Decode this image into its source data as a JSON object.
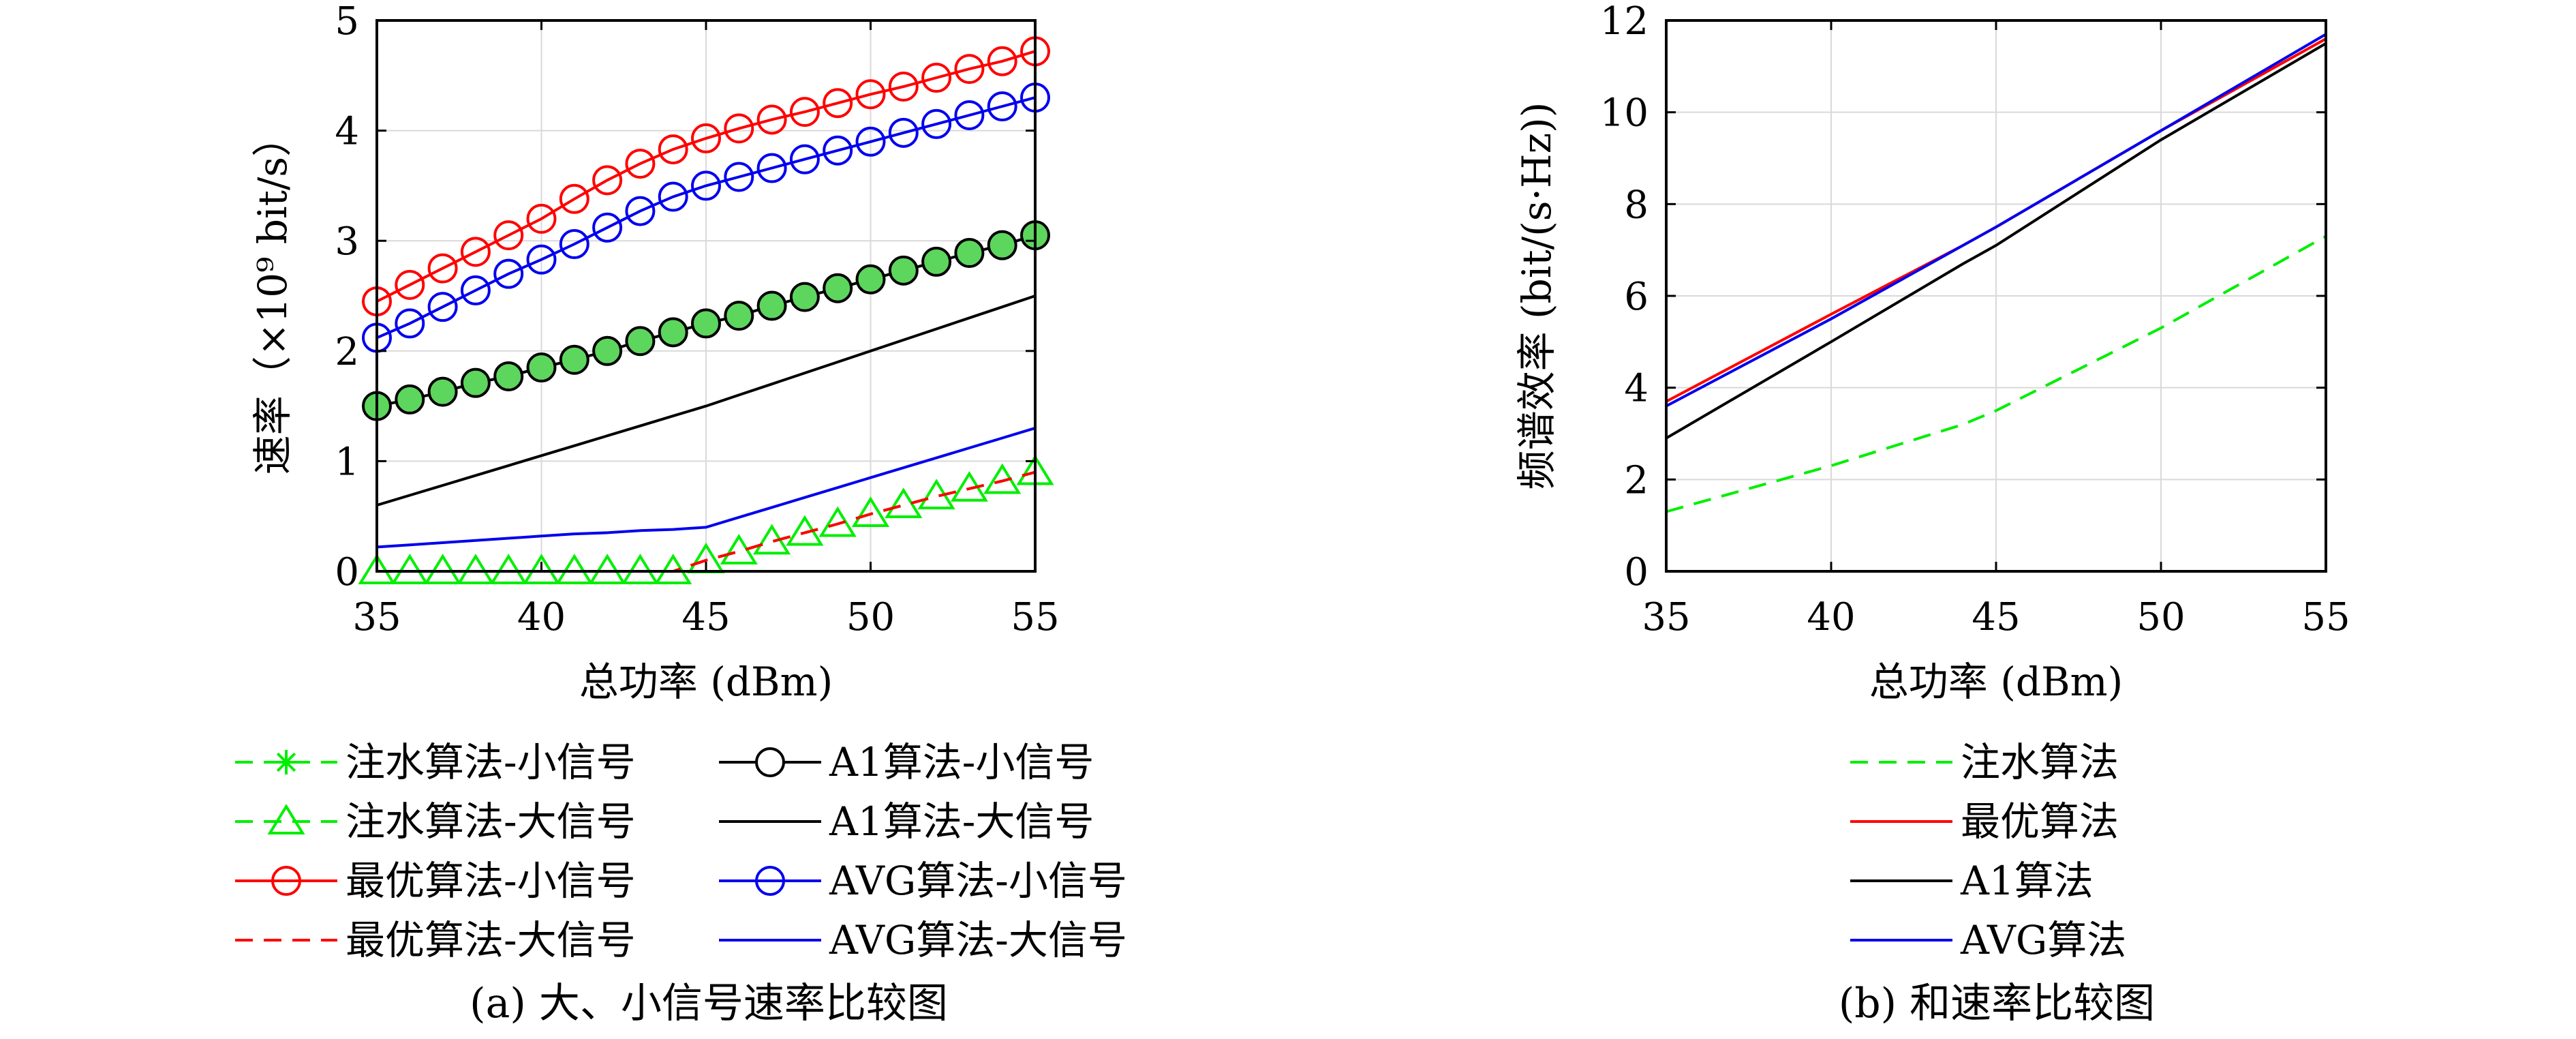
{
  "chart_data": [
    {
      "type": "line",
      "caption": "(a) 大、小信号速率比较图",
      "xlabel": "总功率 (dBm)",
      "ylabel": "速率（×10⁹ bit/s）",
      "xlim": [
        35,
        55
      ],
      "ylim": [
        0,
        5
      ],
      "xticks": [
        "35",
        "40",
        "45",
        "50",
        "55"
      ],
      "yticks": [
        "0",
        "1",
        "2",
        "3",
        "4",
        "5"
      ],
      "grid": true,
      "legend_position": "below",
      "legend_columns": 2,
      "x": [
        35,
        36,
        37,
        38,
        39,
        40,
        41,
        42,
        43,
        44,
        45,
        46,
        47,
        48,
        49,
        50,
        51,
        52,
        53,
        54,
        55
      ],
      "series": [
        {
          "name": "注水算法-小信号",
          "color": "#00ee00",
          "dash": "dashed",
          "marker": "asterisk",
          "values": [
            1.5,
            1.56,
            1.63,
            1.71,
            1.77,
            1.85,
            1.92,
            2.0,
            2.09,
            2.17,
            2.25,
            2.32,
            2.41,
            2.49,
            2.57,
            2.65,
            2.73,
            2.81,
            2.89,
            2.96,
            3.05
          ]
        },
        {
          "name": "注水算法-大信号",
          "color": "#00ee00",
          "dash": "dashed",
          "marker": "triangle",
          "values": [
            0,
            0,
            0,
            0,
            0,
            0,
            0,
            0,
            0,
            0,
            0.1,
            0.18,
            0.27,
            0.35,
            0.43,
            0.52,
            0.6,
            0.68,
            0.75,
            0.82,
            0.9
          ]
        },
        {
          "name": "最优算法-小信号",
          "color": "#ff0000",
          "dash": "solid",
          "marker": "circle",
          "values": [
            2.45,
            2.6,
            2.75,
            2.9,
            3.05,
            3.2,
            3.38,
            3.55,
            3.7,
            3.83,
            3.93,
            4.02,
            4.1,
            4.17,
            4.25,
            4.33,
            4.4,
            4.48,
            4.56,
            4.63,
            4.72
          ]
        },
        {
          "name": "最优算法-大信号",
          "color": "#ff0000",
          "dash": "dashed",
          "marker": "none",
          "values": [
            0,
            0,
            0,
            0,
            0,
            0,
            0,
            0,
            0,
            0,
            0.1,
            0.18,
            0.27,
            0.35,
            0.43,
            0.52,
            0.6,
            0.68,
            0.75,
            0.82,
            0.9
          ]
        },
        {
          "name": "A1算法-小信号",
          "color": "#000000",
          "dash": "solid",
          "marker": "circle",
          "values": [
            1.5,
            1.56,
            1.63,
            1.71,
            1.77,
            1.85,
            1.92,
            2.0,
            2.09,
            2.17,
            2.25,
            2.32,
            2.41,
            2.49,
            2.57,
            2.65,
            2.73,
            2.81,
            2.89,
            2.96,
            3.05
          ]
        },
        {
          "name": "A1算法-大信号",
          "color": "#000000",
          "dash": "solid",
          "marker": "none",
          "values": [
            0.6,
            0.69,
            0.78,
            0.87,
            0.96,
            1.05,
            1.14,
            1.23,
            1.32,
            1.41,
            1.5,
            1.6,
            1.7,
            1.8,
            1.9,
            2.0,
            2.1,
            2.2,
            2.3,
            2.4,
            2.5
          ]
        },
        {
          "name": "AVG算法-小信号",
          "color": "#0000ee",
          "dash": "solid",
          "marker": "circle",
          "values": [
            2.12,
            2.25,
            2.4,
            2.55,
            2.7,
            2.83,
            2.97,
            3.12,
            3.27,
            3.4,
            3.5,
            3.58,
            3.66,
            3.74,
            3.82,
            3.9,
            3.98,
            4.06,
            4.14,
            4.22,
            4.3
          ]
        },
        {
          "name": "AVG算法-大信号",
          "color": "#0000ee",
          "dash": "solid",
          "marker": "none",
          "values": [
            0.22,
            0.24,
            0.26,
            0.28,
            0.3,
            0.32,
            0.34,
            0.35,
            0.37,
            0.38,
            0.4,
            0.49,
            0.58,
            0.67,
            0.76,
            0.85,
            0.94,
            1.03,
            1.12,
            1.21,
            1.3
          ]
        }
      ]
    },
    {
      "type": "line",
      "caption": "(b) 和速率比较图",
      "xlabel": "总功率 (dBm)",
      "ylabel": "频谱效率 (bit/(s·Hz))",
      "xlim": [
        35,
        55
      ],
      "ylim": [
        0,
        12
      ],
      "xticks": [
        "35",
        "40",
        "45",
        "50",
        "55"
      ],
      "yticks": [
        "0",
        "2",
        "4",
        "6",
        "8",
        "10",
        "12"
      ],
      "grid": true,
      "legend_position": "below",
      "legend_columns": 1,
      "x": [
        35,
        40,
        44,
        45,
        50,
        55
      ],
      "series": [
        {
          "name": "注水算法",
          "color": "#00ee00",
          "dash": "dashed",
          "values": [
            1.3,
            2.3,
            3.2,
            3.5,
            5.3,
            7.3
          ]
        },
        {
          "name": "最优算法",
          "color": "#ff0000",
          "dash": "solid",
          "values": [
            3.7,
            5.6,
            7.1,
            7.5,
            9.6,
            11.6
          ]
        },
        {
          "name": "A1算法",
          "color": "#000000",
          "dash": "solid",
          "values": [
            2.9,
            5.0,
            6.7,
            7.1,
            9.4,
            11.5
          ]
        },
        {
          "name": "AVG算法",
          "color": "#0000ee",
          "dash": "solid",
          "values": [
            3.6,
            5.5,
            7.1,
            7.5,
            9.6,
            11.7
          ]
        }
      ]
    }
  ]
}
